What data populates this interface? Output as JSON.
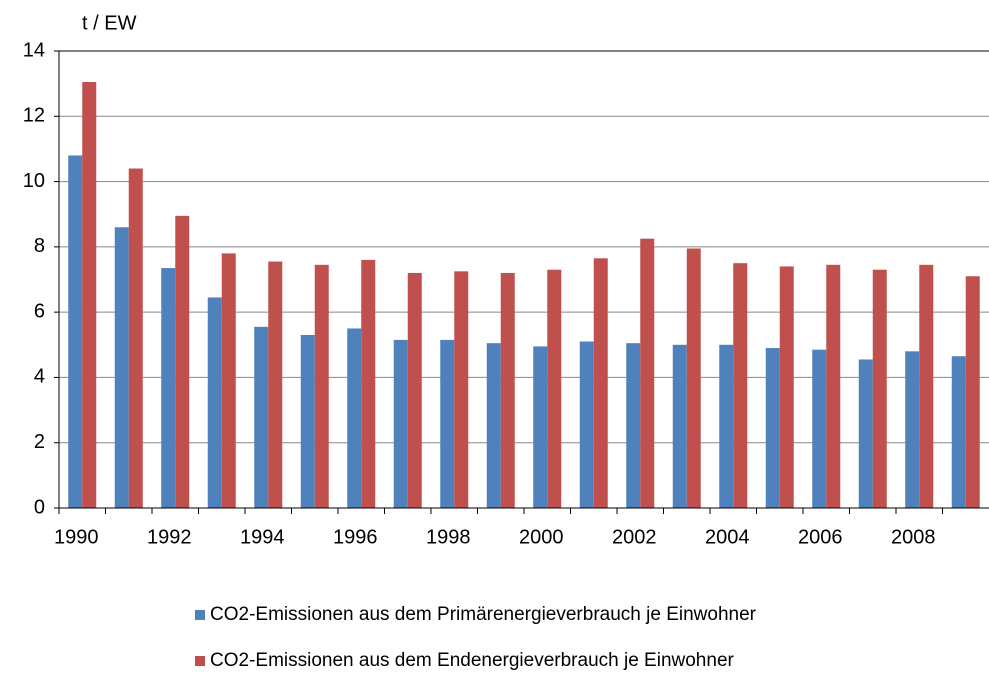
{
  "chart_data": {
    "type": "bar",
    "y_label": "t / EW",
    "categories": [
      "1990",
      null,
      "1992",
      null,
      "1994",
      null,
      "1996",
      null,
      "1998",
      null,
      "2000",
      null,
      "2002",
      null,
      "2004",
      null,
      "2006",
      null,
      "2008",
      null
    ],
    "series": [
      {
        "name": "CO2-Emissionen aus dem Primärenergieverbrauch je Einwohner",
        "color": "#4f81bd",
        "values": [
          10.8,
          8.6,
          7.35,
          6.45,
          5.55,
          5.3,
          5.5,
          5.15,
          5.15,
          5.05,
          4.95,
          5.1,
          5.05,
          5.0,
          5.0,
          4.9,
          4.85,
          4.55,
          4.8,
          4.65
        ]
      },
      {
        "name": "CO2-Emissionen aus dem Endenergieverbrauch je Einwohner",
        "color": "#c0504d",
        "values": [
          13.05,
          10.4,
          8.95,
          7.8,
          7.55,
          7.45,
          7.6,
          7.2,
          7.25,
          7.2,
          7.3,
          7.65,
          8.25,
          7.95,
          7.5,
          7.4,
          7.45,
          7.3,
          7.45,
          7.1
        ]
      }
    ],
    "ylim": [
      0,
      14
    ],
    "yticks": [
      0,
      2,
      4,
      6,
      8,
      10,
      12,
      14
    ],
    "grid": true
  }
}
